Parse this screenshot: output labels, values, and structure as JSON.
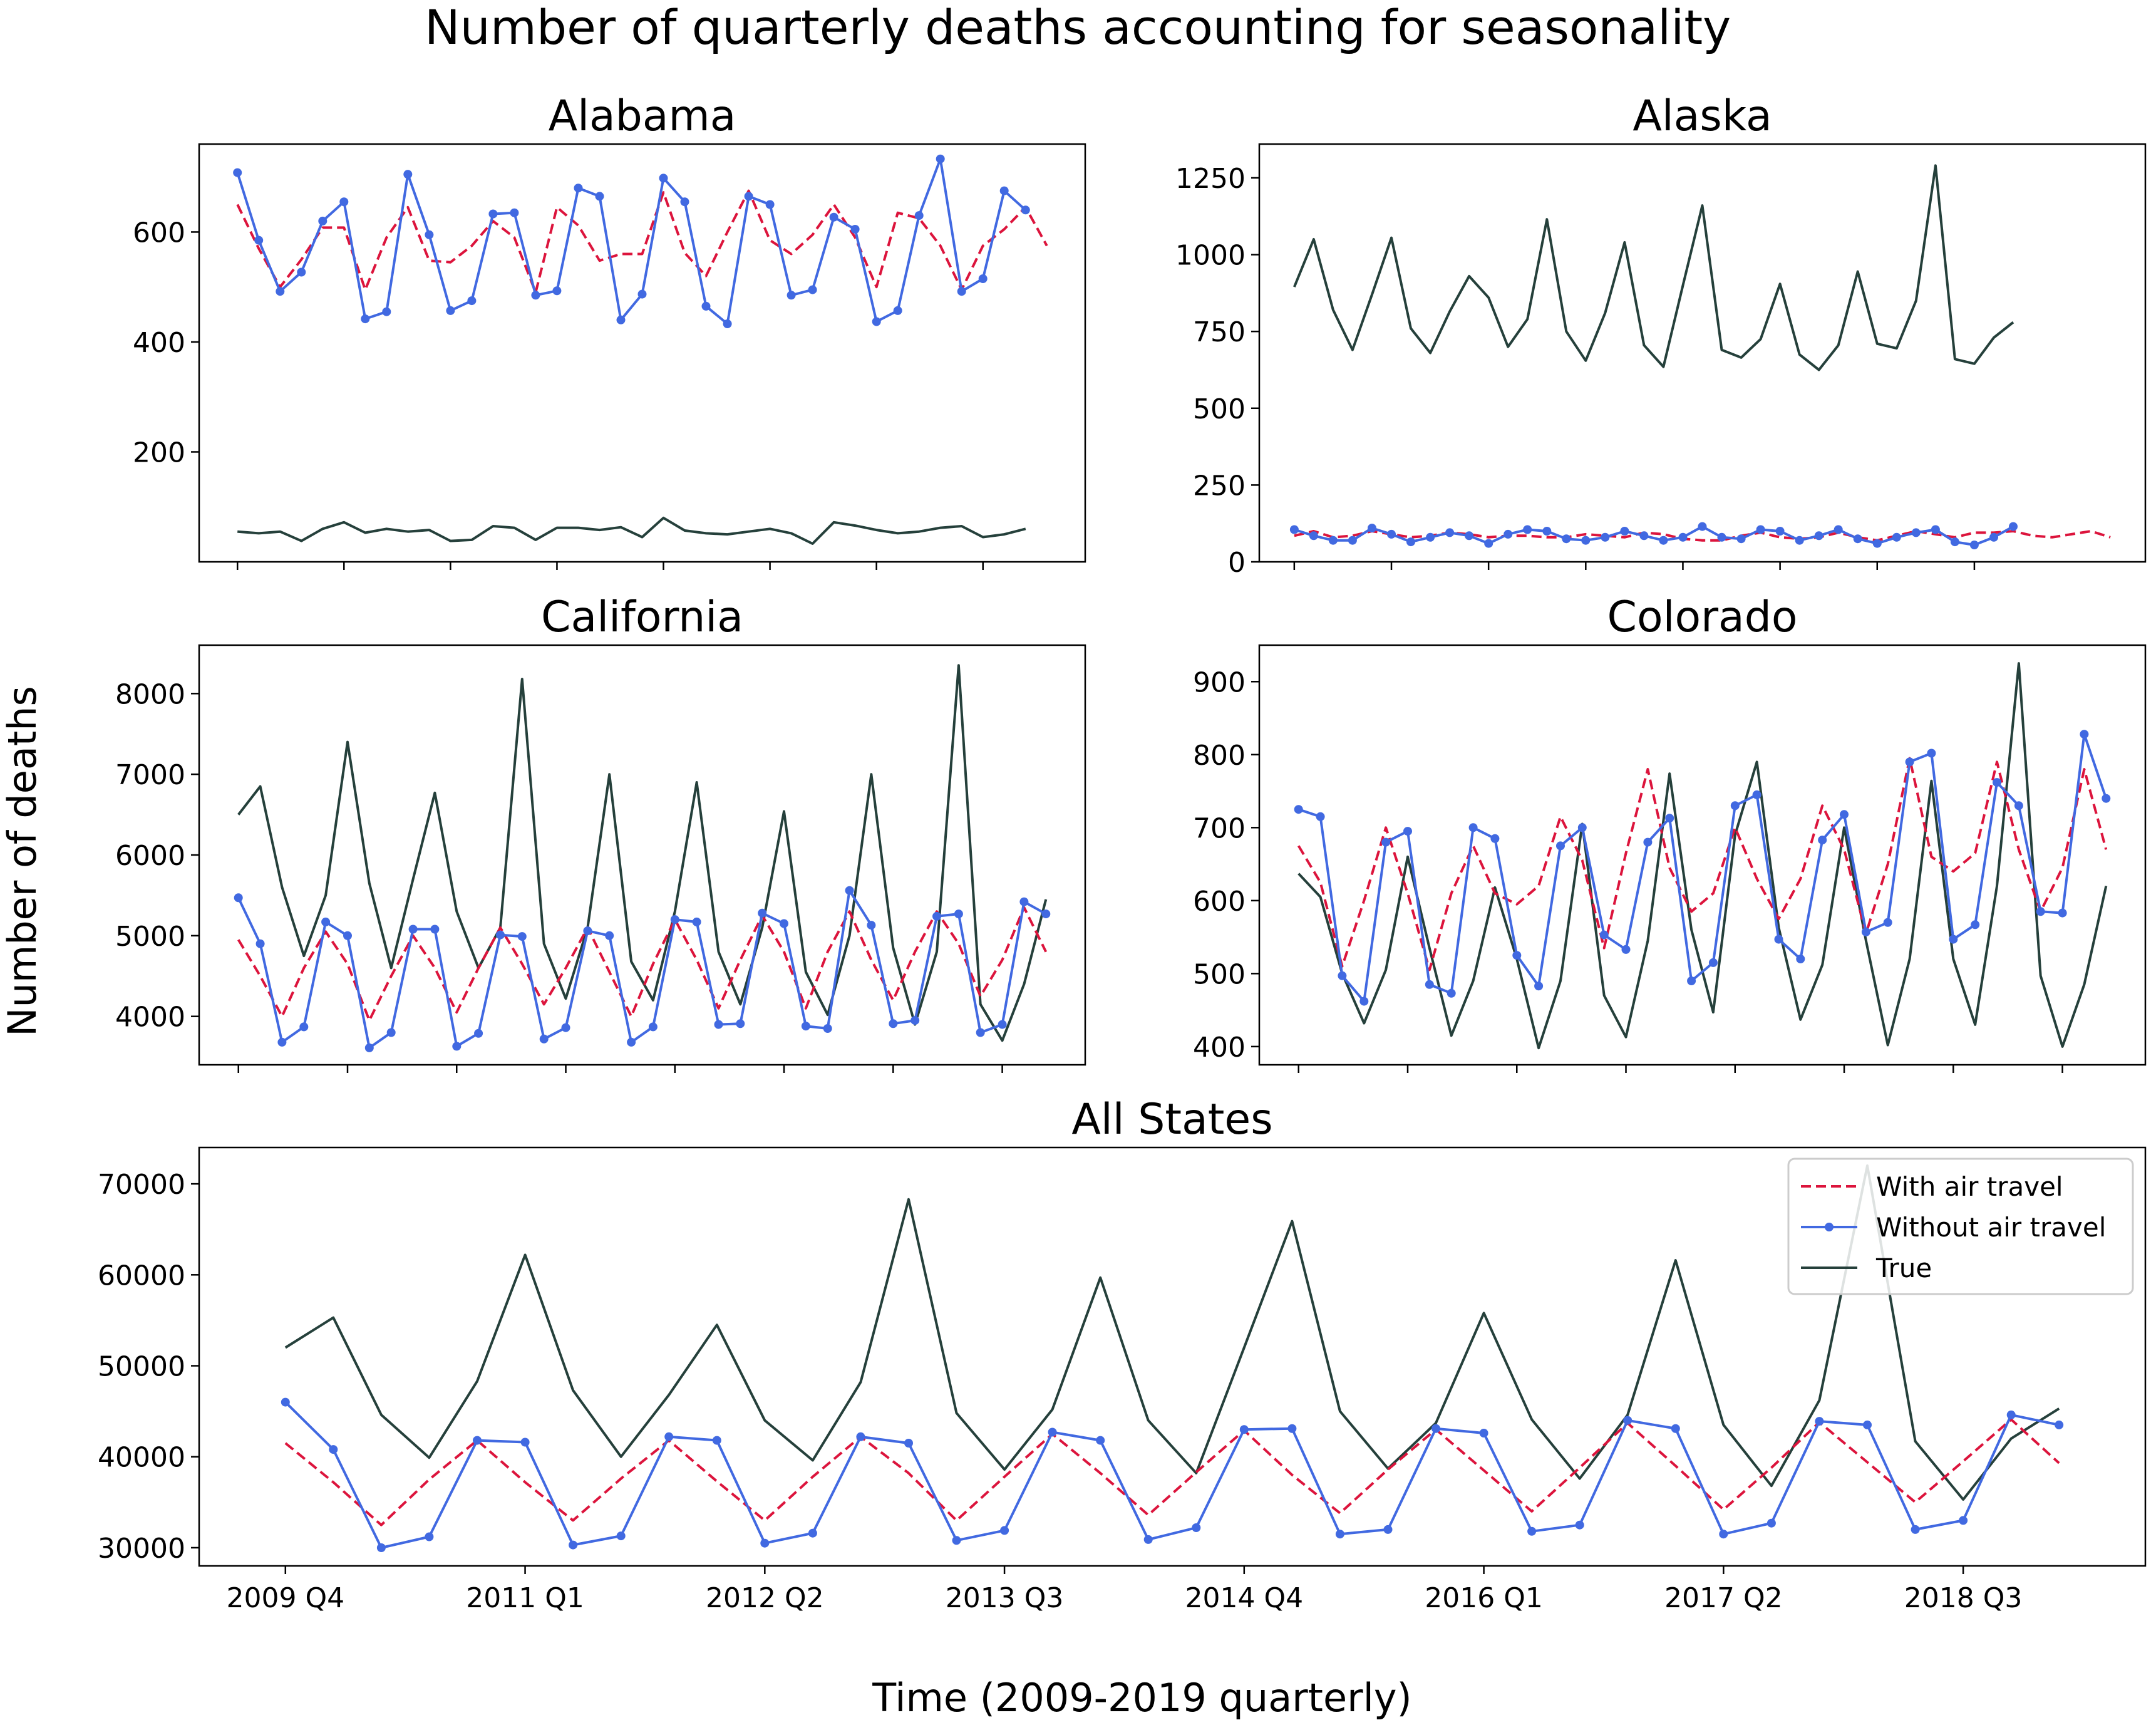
{
  "figure": {
    "title": "Number of quarterly deaths accounting for seasonality",
    "xlabel": "Time (2009-2019 quarterly)",
    "ylabel": "Number of deaths"
  },
  "colors": {
    "with_air": "#dc143c",
    "without_air": "#4169e1",
    "true": "#25403b"
  },
  "legend": {
    "placement": "top-right",
    "entries": [
      "With air travel",
      "Without air travel",
      "True"
    ]
  },
  "chart_data": [
    {
      "type": "line",
      "title": "Alabama",
      "ylim": [
        0,
        760
      ],
      "yticks": [
        200,
        400,
        600
      ],
      "ytick_labels": [
        "200",
        "400",
        "600"
      ],
      "xticks": [
        0,
        5,
        10,
        15,
        20,
        25,
        30,
        35
      ],
      "series": [
        {
          "key": "with_air",
          "values": [
            650,
            570,
            500,
            550,
            608,
            608,
            495,
            590,
            645,
            548,
            545,
            575,
            620,
            590,
            490,
            645,
            612,
            548,
            560,
            560,
            672,
            562,
            520,
            600,
            675,
            585,
            560,
            595,
            650,
            590,
            500,
            635,
            625,
            575,
            495,
            575,
            605,
            645,
            575
          ]
        },
        {
          "key": "without_air",
          "values": [
            708,
            585,
            492,
            527,
            620,
            655,
            442,
            455,
            705,
            595,
            457,
            475,
            633,
            635,
            485,
            493,
            680,
            665,
            440,
            487,
            698,
            655,
            465,
            433,
            665,
            650,
            485,
            495,
            627,
            605,
            437,
            457,
            630,
            733,
            492,
            515,
            675,
            640
          ]
        },
        {
          "key": "true",
          "values": [
            55,
            52,
            55,
            38,
            60,
            72,
            53,
            60,
            55,
            58,
            38,
            40,
            65,
            62,
            40,
            62,
            62,
            58,
            63,
            45,
            80,
            57,
            52,
            50,
            55,
            60,
            52,
            33,
            72,
            66,
            58,
            52,
            55,
            62,
            65,
            45,
            50,
            60
          ]
        }
      ]
    },
    {
      "type": "line",
      "title": "Alaska",
      "ylim": [
        0,
        1360
      ],
      "yticks": [
        0,
        250,
        500,
        750,
        1000,
        1250
      ],
      "ytick_labels": [
        "0",
        "250",
        "500",
        "750",
        "1000",
        "1250"
      ],
      "xticks": [
        0,
        5,
        10,
        15,
        20,
        25,
        30,
        35
      ],
      "series": [
        {
          "key": "with_air",
          "values": [
            85,
            100,
            80,
            85,
            100,
            90,
            80,
            85,
            95,
            90,
            80,
            85,
            85,
            80,
            80,
            90,
            85,
            80,
            95,
            90,
            75,
            70,
            70,
            85,
            95,
            80,
            75,
            80,
            95,
            80,
            70,
            85,
            100,
            90,
            80,
            95,
            95,
            100,
            85,
            80,
            90,
            100,
            80
          ]
        },
        {
          "key": "without_air",
          "values": [
            105,
            85,
            70,
            70,
            110,
            90,
            65,
            80,
            95,
            85,
            60,
            90,
            105,
            100,
            75,
            70,
            80,
            100,
            85,
            70,
            80,
            115,
            80,
            75,
            105,
            100,
            70,
            85,
            105,
            75,
            60,
            80,
            95,
            105,
            65,
            55,
            80,
            115
          ]
        },
        {
          "key": "true",
          "values": [
            895,
            1050,
            820,
            690,
            870,
            1055,
            760,
            680,
            815,
            930,
            860,
            700,
            790,
            1115,
            750,
            655,
            810,
            1040,
            705,
            635,
            900,
            1160,
            690,
            665,
            725,
            905,
            675,
            625,
            705,
            945,
            710,
            695,
            850,
            1290,
            660,
            645,
            730,
            780
          ]
        }
      ]
    },
    {
      "type": "line",
      "title": "California",
      "ylim": [
        3400,
        8600
      ],
      "yticks": [
        4000,
        5000,
        6000,
        7000,
        8000
      ],
      "ytick_labels": [
        "4000",
        "5000",
        "6000",
        "7000",
        "8000"
      ],
      "xticks": [
        0,
        5,
        10,
        15,
        20,
        25,
        30,
        35
      ],
      "series": [
        {
          "key": "with_air",
          "values": [
            4950,
            4500,
            4000,
            4600,
            5050,
            4650,
            3950,
            4500,
            5000,
            4600,
            4050,
            4600,
            5100,
            4650,
            4150,
            4600,
            5100,
            4550,
            4000,
            4650,
            5200,
            4700,
            4100,
            4700,
            5250,
            4800,
            4100,
            4800,
            5300,
            4700,
            4200,
            4800,
            5300,
            4900,
            4250,
            4700,
            5350,
            4800
          ]
        },
        {
          "key": "without_air",
          "values": [
            5470,
            4900,
            3680,
            3870,
            5170,
            5000,
            3610,
            3800,
            5080,
            5080,
            3630,
            3790,
            5010,
            4990,
            3720,
            3860,
            5060,
            5000,
            3680,
            3870,
            5200,
            5170,
            3900,
            3910,
            5280,
            5150,
            3880,
            3850,
            5560,
            5130,
            3910,
            3950,
            5240,
            5270,
            3800,
            3900,
            5420,
            5270
          ]
        },
        {
          "key": "true",
          "values": [
            6500,
            6850,
            5600,
            4750,
            5500,
            7400,
            5650,
            4600,
            5700,
            6770,
            5300,
            4600,
            5100,
            8180,
            4900,
            4220,
            5100,
            7000,
            4680,
            4200,
            5300,
            6900,
            4800,
            4150,
            5100,
            6540,
            4550,
            4020,
            5000,
            7000,
            4850,
            3900,
            4800,
            8350,
            4150,
            3700,
            4400,
            5450
          ]
        }
      ]
    },
    {
      "type": "line",
      "title": "Colorado",
      "ylim": [
        375,
        950
      ],
      "yticks": [
        400,
        500,
        600,
        700,
        800,
        900
      ],
      "ytick_labels": [
        "400",
        "500",
        "600",
        "700",
        "800",
        "900"
      ],
      "xticks": [
        0,
        5,
        10,
        15,
        20,
        25,
        30,
        35
      ],
      "series": [
        {
          "key": "with_air",
          "values": [
            675,
            625,
            510,
            600,
            700,
            610,
            505,
            610,
            675,
            610,
            595,
            620,
            715,
            655,
            535,
            665,
            780,
            645,
            585,
            610,
            700,
            630,
            575,
            630,
            730,
            670,
            555,
            650,
            795,
            660,
            640,
            665,
            790,
            670,
            585,
            645,
            780,
            670
          ]
        },
        {
          "key": "without_air",
          "values": [
            725,
            715,
            497,
            462,
            680,
            695,
            485,
            473,
            700,
            685,
            525,
            483,
            675,
            700,
            553,
            533,
            680,
            713,
            490,
            515,
            730,
            745,
            547,
            520,
            683,
            718,
            557,
            570,
            790,
            802,
            547,
            567,
            762,
            730,
            585,
            583,
            828,
            740
          ]
        },
        {
          "key": "true",
          "values": [
            637,
            605,
            500,
            432,
            505,
            660,
            535,
            415,
            490,
            618,
            520,
            398,
            490,
            705,
            470,
            413,
            545,
            774,
            560,
            447,
            690,
            790,
            563,
            437,
            512,
            700,
            545,
            402,
            520,
            764,
            520,
            430,
            620,
            925,
            497,
            400,
            485,
            620
          ]
        }
      ]
    },
    {
      "type": "line",
      "title": "All States",
      "ylim": [
        28000,
        74000
      ],
      "yticks": [
        30000,
        40000,
        50000,
        60000,
        70000
      ],
      "ytick_labels": [
        "30000",
        "40000",
        "50000",
        "60000",
        "70000"
      ],
      "xticks": [
        0,
        5,
        10,
        15,
        20,
        25,
        30,
        35
      ],
      "xtick_labels": [
        "2009 Q4",
        "2011 Q1",
        "2012 Q2",
        "2013 Q3",
        "2014 Q4",
        "2016 Q1",
        "2017 Q2",
        "2018 Q3"
      ],
      "series": [
        {
          "key": "with_air",
          "values": [
            41500,
            37200,
            32500,
            37500,
            41800,
            37200,
            33000,
            37600,
            41800,
            37300,
            33000,
            37800,
            42200,
            38200,
            33000,
            37800,
            42500,
            38200,
            33600,
            38300,
            42900,
            38000,
            33800,
            38600,
            43000,
            38500,
            34000,
            38800,
            43700,
            39000,
            34200,
            38800,
            43800,
            39400,
            35000,
            39500,
            44100,
            39300
          ]
        },
        {
          "key": "without_air",
          "values": [
            46000,
            40800,
            30000,
            31200,
            41800,
            41600,
            30300,
            31300,
            42200,
            41800,
            30500,
            31600,
            42200,
            41500,
            30800,
            31900,
            42700,
            41800,
            30900,
            32200,
            43000,
            43100,
            31500,
            32000,
            43100,
            42600,
            31800,
            32500,
            44000,
            43100,
            31500,
            32700,
            43900,
            43500,
            32000,
            33000,
            44600,
            43500
          ]
        },
        {
          "key": "true",
          "values": [
            52000,
            55300,
            44600,
            39900,
            48300,
            62200,
            47300,
            40000,
            46800,
            54500,
            44000,
            39600,
            48200,
            68300,
            44800,
            38600,
            45200,
            59700,
            44000,
            38200,
            52000,
            65900,
            45000,
            38700,
            43700,
            55800,
            44100,
            37600,
            44600,
            61600,
            43500,
            36800,
            46200,
            72000,
            41700,
            35300,
            42000,
            45300
          ]
        }
      ]
    }
  ]
}
